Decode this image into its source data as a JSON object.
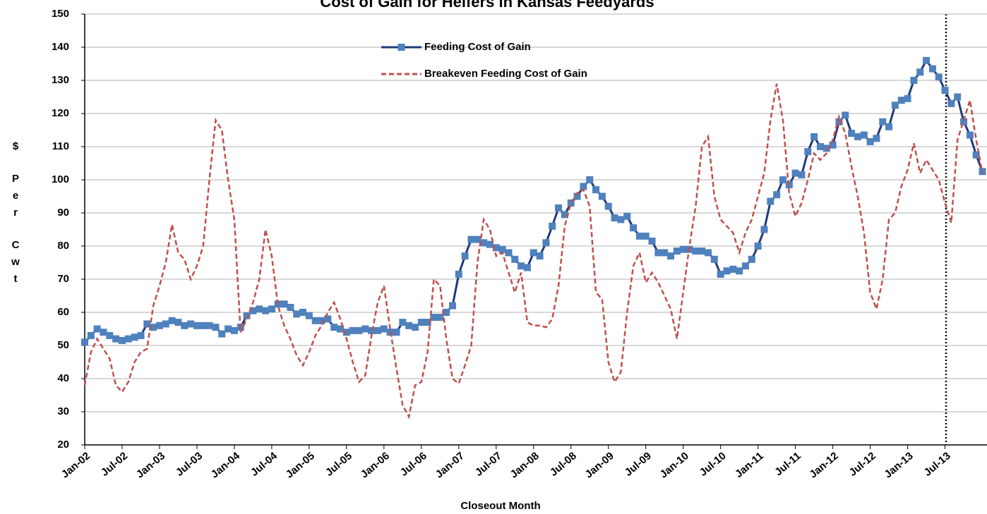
{
  "chart_data": {
    "type": "line",
    "title": "Cost of Gain for Heifers in Kansas Feedyards",
    "y_label": "$ Per Cwt",
    "x_label": "Closeout Month",
    "categories": [
      "Jan-02",
      null,
      null,
      null,
      null,
      null,
      "Jul-02",
      null,
      null,
      null,
      null,
      null,
      "Jan-03",
      null,
      null,
      null,
      null,
      null,
      "Jul-03",
      null,
      null,
      null,
      null,
      null,
      "Jan-04",
      null,
      null,
      null,
      null,
      null,
      "Jul-04",
      null,
      null,
      null,
      null,
      null,
      "Jan-05",
      null,
      null,
      null,
      null,
      null,
      "Jul-05",
      null,
      null,
      null,
      null,
      null,
      "Jan-06",
      null,
      null,
      null,
      null,
      null,
      "Jul-06",
      null,
      null,
      null,
      null,
      null,
      "Jan-07",
      null,
      null,
      null,
      null,
      null,
      "Jul-07",
      null,
      null,
      null,
      null,
      null,
      "Jan-08",
      null,
      null,
      null,
      null,
      null,
      "Jul-08",
      null,
      null,
      null,
      null,
      null,
      "Jan-09",
      null,
      null,
      null,
      null,
      null,
      "Jul-09",
      null,
      null,
      null,
      null,
      null,
      "Jan-10",
      null,
      null,
      null,
      null,
      null,
      "Jul-10",
      null,
      null,
      null,
      null,
      null,
      "Jan-11",
      null,
      null,
      null,
      null,
      null,
      "Jul-11",
      null,
      null,
      null,
      null,
      null,
      "Jan-12",
      null,
      null,
      null,
      null,
      null,
      "Jul-12",
      null,
      null,
      null,
      null,
      null,
      "Jan-13",
      null,
      null,
      null,
      null,
      null,
      "Jul-13",
      null,
      null,
      null,
      null,
      null,
      null
    ],
    "series": [
      {
        "name": "Feeding Cost of Gain",
        "color": "#1f3a7a",
        "marker_color": "#4f81bd",
        "style": "solid",
        "marker": true,
        "values": [
          51,
          53,
          55,
          54,
          53,
          52,
          51.5,
          52,
          52.5,
          53,
          56.5,
          55.5,
          56,
          56.5,
          57.5,
          57,
          56,
          56.5,
          56,
          56,
          56,
          55.5,
          53.5,
          55,
          54.5,
          55.5,
          59,
          60.5,
          61,
          60.5,
          61,
          62.5,
          62.5,
          61.5,
          59.5,
          60,
          59,
          57.5,
          57.5,
          58,
          55.5,
          55,
          54,
          54.5,
          54.5,
          55,
          54.5,
          54.5,
          55,
          54,
          54,
          57,
          56,
          55.5,
          57,
          57,
          58.5,
          58.5,
          60,
          62,
          71.5,
          77,
          82,
          82,
          81,
          80.5,
          79.5,
          79,
          78,
          76,
          74,
          73.5,
          78,
          77,
          81,
          86,
          91.5,
          89.5,
          93,
          95,
          98,
          100,
          97,
          95,
          92,
          88.5,
          88,
          89,
          85.5,
          83,
          83,
          81.5,
          78,
          78,
          77,
          78.5,
          79,
          79,
          78.5,
          78.5,
          78,
          76,
          71.5,
          72.5,
          73,
          72.5,
          74,
          76,
          80,
          85,
          93.5,
          95.5,
          100,
          98.5,
          102,
          101.5,
          108.5,
          113,
          110,
          109.5,
          110.5,
          117.5,
          119.5,
          114,
          113,
          113.5,
          111.5,
          112.5,
          117.5,
          116,
          122.5,
          124,
          124.5,
          130,
          132.5,
          136,
          133.5,
          131,
          127,
          123,
          125,
          117.5,
          113.5,
          107.5,
          102.5
        ]
      },
      {
        "name": "Breakeven Feeding Cost of Gain",
        "color": "#c0504d",
        "style": "dashed",
        "marker": false,
        "values": [
          38,
          48,
          52,
          49,
          46,
          38,
          36,
          39,
          45,
          48,
          49,
          62,
          68,
          75,
          86.5,
          78,
          76,
          70,
          74,
          80,
          100,
          118,
          115,
          100,
          88,
          54,
          58,
          63,
          70,
          85,
          77,
          62,
          56,
          52,
          47,
          44,
          48,
          53,
          56,
          60,
          63,
          58,
          52,
          45,
          39,
          41,
          53,
          63,
          68,
          55,
          43,
          32,
          28.5,
          38,
          39,
          48,
          70,
          68,
          52,
          40,
          38.5,
          44,
          50,
          75,
          88,
          85,
          77,
          78,
          72,
          66,
          72,
          57,
          56,
          56,
          55.5,
          58,
          68,
          86,
          93,
          96,
          97,
          92,
          66,
          64,
          45,
          39,
          42,
          60,
          74,
          78,
          69,
          72,
          69,
          65,
          61,
          52,
          66,
          80,
          92,
          110,
          113,
          95,
          88,
          86,
          84,
          78,
          84,
          88,
          95,
          102,
          118,
          129,
          118,
          96,
          89,
          93,
          100,
          108,
          106,
          108,
          112,
          119,
          114,
          104,
          95,
          84,
          66,
          61,
          70,
          88,
          90,
          98,
          103,
          111,
          102,
          106,
          103,
          100,
          93,
          87,
          112,
          118,
          124,
          112,
          102
        ]
      }
    ],
    "ylim": [
      20,
      150
    ],
    "yticks": [
      20,
      30,
      40,
      50,
      60,
      70,
      80,
      90,
      100,
      110,
      120,
      130,
      140,
      150
    ],
    "grid": true
  }
}
